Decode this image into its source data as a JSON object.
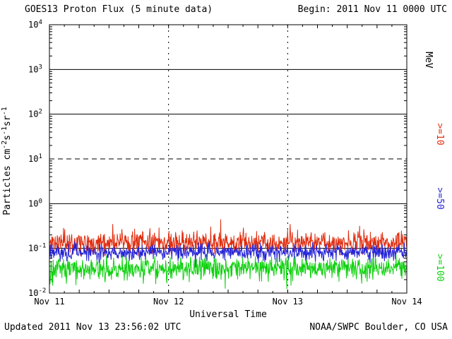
{
  "header": {
    "title": "GOES13 Proton Flux (5 minute data)",
    "begin_label": "Begin: 2011 Nov 11 0000 UTC"
  },
  "footer": {
    "updated": "Updated 2011 Nov 13 23:56:02 UTC",
    "source": "NOAA/SWPC Boulder, CO USA"
  },
  "chart_data": {
    "type": "line",
    "title": "GOES13 Proton Flux (5 minute data)",
    "xlabel": "Universal Time",
    "ylabel": "Particles cm-2 s-1 sr-1",
    "ylabel_parts": [
      {
        "text": "Particles cm"
      },
      {
        "sup": "-2"
      },
      {
        "text": "s"
      },
      {
        "sup": "-1"
      },
      {
        "text": "sr"
      },
      {
        "sup": "-1"
      }
    ],
    "units_label": "MeV",
    "x_ticks": [
      "Nov 11",
      "Nov 12",
      "Nov 13",
      "Nov 14"
    ],
    "x_axis_range_days": 3,
    "samples_per_day": 288,
    "y_scale": "log",
    "ylim": [
      0.01,
      10000
    ],
    "y_tick_exponents": [
      4,
      3,
      2,
      1,
      0,
      -1,
      -2
    ],
    "grid": {
      "solid_h": [
        1000,
        100,
        1,
        0.1
      ],
      "dashed_h": [
        10
      ],
      "dotted_v_days": [
        1,
        2
      ]
    },
    "legend_position": "right",
    "series": [
      {
        "label": ">=10",
        "color": "#e02e10",
        "approx_log10_mean": -0.87,
        "approx_log10_sigma": 0.12,
        "spike_prob": 0.035,
        "spike_sign": 1,
        "spike_max_log10": 0.33,
        "approx_range": [
          0.07,
          0.35
        ],
        "seed": 11
      },
      {
        "label": ">=50",
        "color": "#2424d8",
        "approx_log10_mean": -1.08,
        "approx_log10_sigma": 0.09,
        "spike_prob": 0.02,
        "spike_sign": -1,
        "spike_max_log10": 0.22,
        "approx_range": [
          0.05,
          0.15
        ],
        "seed": 52
      },
      {
        "label": ">=100",
        "color": "#0fd10f",
        "approx_log10_mean": -1.43,
        "approx_log10_sigma": 0.12,
        "spike_prob": 0.08,
        "spike_sign": -1,
        "spike_max_log10": 0.3,
        "approx_range": [
          0.015,
          0.08
        ],
        "seed": 103
      }
    ]
  }
}
